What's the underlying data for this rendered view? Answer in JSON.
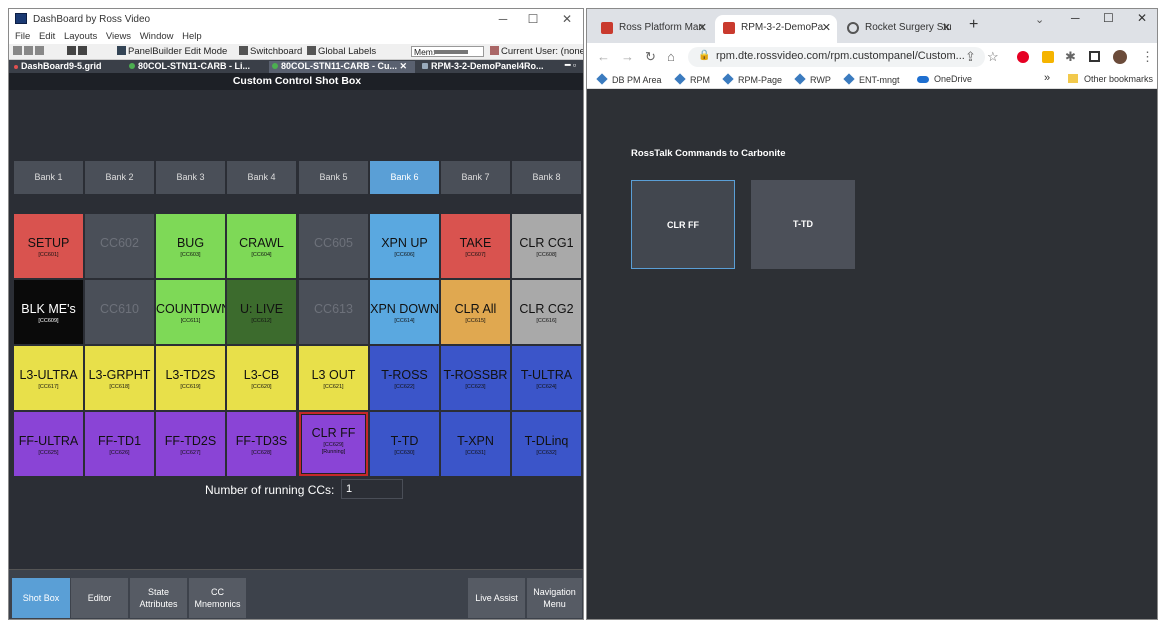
{
  "dashboard": {
    "title": "DashBoard by Ross Video",
    "window_controls": [
      "─",
      "☐",
      "✕"
    ],
    "menu": [
      "File",
      "Edit",
      "Layouts",
      "Views",
      "Window",
      "Help"
    ],
    "toolbar": {
      "panelbuilder": "PanelBuilder Edit Mode",
      "switchboard": "Switchboard",
      "global_labels": "Global Labels",
      "mem_label": "Mem:",
      "current_user": "Current User: (none)"
    },
    "doc_tabs": [
      "DashBoard9-5.grid",
      "80COL-STN11-CARB - Li...",
      "80COL-STN11-CARB - Cu...",
      "RPM-3-2-DemoPanel4Ro..."
    ],
    "panel_title": "Custom Control Shot Box",
    "banks": [
      "Bank 1",
      "Bank 2",
      "Bank 3",
      "Bank 4",
      "Bank 5",
      "Bank 6",
      "Bank 7",
      "Bank 8"
    ],
    "selected_bank": 5,
    "cc_buttons": [
      {
        "name": "SETUP",
        "code": "[CC601]",
        "color": "#d9534f"
      },
      {
        "name": "CC602",
        "code": "",
        "color": "#4a4f58"
      },
      {
        "name": "BUG",
        "code": "[CC603]",
        "color": "#7ed957"
      },
      {
        "name": "CRAWL",
        "code": "[CC604]",
        "color": "#7ed957"
      },
      {
        "name": "CC605",
        "code": "",
        "color": "#4a4f58"
      },
      {
        "name": "XPN UP",
        "code": "[CC606]",
        "color": "#5aa8e0"
      },
      {
        "name": "TAKE",
        "code": "[CC607]",
        "color": "#d9534f"
      },
      {
        "name": "CLR CG1",
        "code": "[CC608]",
        "color": "#a9a9a9"
      },
      {
        "name": "BLK ME's",
        "code": "[CC609]",
        "color": "#0a0a0a"
      },
      {
        "name": "CC610",
        "code": "",
        "color": "#4a4f58"
      },
      {
        "name": "COUNTDWN",
        "code": "[CC611]",
        "color": "#7ed957"
      },
      {
        "name": "U: LIVE",
        "code": "[CC612]",
        "color": "#3c6b2d"
      },
      {
        "name": "CC613",
        "code": "",
        "color": "#4a4f58"
      },
      {
        "name": "XPN DOWN",
        "code": "[CC614]",
        "color": "#5aa8e0"
      },
      {
        "name": "CLR All",
        "code": "[CC615]",
        "color": "#e0a850"
      },
      {
        "name": "CLR CG2",
        "code": "[CC616]",
        "color": "#a9a9a9"
      },
      {
        "name": "L3-ULTRA",
        "code": "[CC617]",
        "color": "#e8e04a"
      },
      {
        "name": "L3-GRPHT",
        "code": "[CC618]",
        "color": "#e8e04a"
      },
      {
        "name": "L3-TD2S",
        "code": "[CC619]",
        "color": "#e8e04a"
      },
      {
        "name": "L3-CB",
        "code": "[CC620]",
        "color": "#e8e04a"
      },
      {
        "name": "L3 OUT",
        "code": "[CC621]",
        "color": "#e8e04a"
      },
      {
        "name": "T-ROSS",
        "code": "[CC622]",
        "color": "#3b55c9"
      },
      {
        "name": "T-ROSSBR",
        "code": "[CC623]",
        "color": "#3b55c9"
      },
      {
        "name": "T-ULTRA",
        "code": "[CC624]",
        "color": "#3b55c9"
      },
      {
        "name": "FF-ULTRA",
        "code": "[CC625]",
        "color": "#8a44d6"
      },
      {
        "name": "FF-TD1",
        "code": "[CC626]",
        "color": "#8a44d6"
      },
      {
        "name": "FF-TD2S",
        "code": "[CC627]",
        "color": "#8a44d6"
      },
      {
        "name": "FF-TD3S",
        "code": "[CC628]",
        "color": "#8a44d6"
      },
      {
        "name": "CLR FF",
        "code": "[CC629]",
        "status": "[Running]",
        "color": "#8a44d6",
        "running_border": "#c62828"
      },
      {
        "name": "T-TD",
        "code": "[CC630]",
        "color": "#3b55c9"
      },
      {
        "name": "T-XPN",
        "code": "[CC631]",
        "color": "#3b55c9"
      },
      {
        "name": "T-DLinq",
        "code": "[CC632]",
        "color": "#3b55c9"
      }
    ],
    "running_label": "Number of running CCs:",
    "running_value": "1",
    "bottom_nav": [
      "Shot Box",
      "Editor",
      "State Attributes",
      "CC Mnemonics",
      "Live Assist",
      "Navigation Menu"
    ]
  },
  "browser": {
    "tabs": [
      "Ross Platform Man",
      "RPM-3-2-DemoPa",
      "Rocket Surgery Stu"
    ],
    "new_tab": "+",
    "url": "rpm.dte.rossvideo.com/rpm.custompanel/Custom...",
    "bookmarks": [
      "DB PM Area",
      "RPM",
      "RPM-Page",
      "RWP",
      "ENT-mngt",
      "OneDrive"
    ],
    "more_bookmarks": "»",
    "other_bookmarks": "Other bookmarks",
    "panel_title": "RossTalk Commands to Carbonite",
    "buttons": [
      "CLR FF",
      "T-TD"
    ]
  }
}
